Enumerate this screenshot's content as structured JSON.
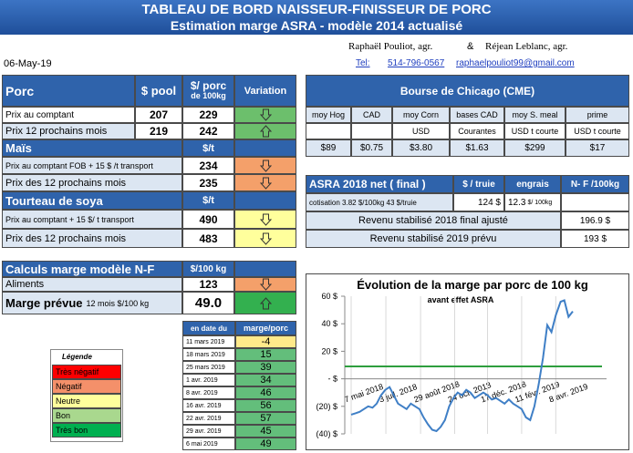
{
  "header": {
    "title": "TABLEAU DE BORD NAISSEUR-FINISSEUR DE PORC",
    "subtitle": "Estimation marge ASRA - modèle 2014 actualisé"
  },
  "contacts": {
    "name1": "Raphaël Pouliot, agr.",
    "and": "&",
    "name2": "Réjean Leblanc, agr.",
    "tel_label": "Tel:",
    "tel": "514-796-0567",
    "email": "raphaelpouliot99@gmail.com"
  },
  "date": "06-May-19",
  "porc": {
    "headers": [
      "Porc",
      "$ pool",
      "$/ porc",
      "de 100kg",
      "Variation"
    ],
    "rows": [
      [
        "Prix au comptant",
        "207",
        "229"
      ],
      [
        "Prix 12 prochains mois",
        "219",
        "242"
      ]
    ]
  },
  "mais": {
    "headers": [
      "Maïs",
      "$/t"
    ],
    "rows": [
      [
        "Prix au comptant FOB + 15 $ /t transport",
        "234"
      ],
      [
        "Prix des 12 prochains mois",
        "235"
      ]
    ]
  },
  "soya": {
    "headers": [
      "Tourteau de soya",
      "$/t"
    ],
    "rows": [
      [
        "Prix au comptant + 15 $/ t transport",
        "490"
      ],
      [
        "Prix des 12 prochains mois",
        "483"
      ]
    ]
  },
  "calc": {
    "headers": [
      "Calculs marge  modèle N-F",
      "$/100 kg"
    ],
    "aliments": [
      "Aliments",
      "123"
    ],
    "marge": {
      "label": "Marge prévue",
      "sub": "12 mois  $/100 kg",
      "value": "49.0"
    }
  },
  "history": {
    "headers": [
      "en date du",
      "marge/porc"
    ],
    "rows": [
      [
        "11 mars 2019",
        "-4"
      ],
      [
        "18 mars 2019",
        "15"
      ],
      [
        "25 mars 2019",
        "39"
      ],
      [
        "1 avr. 2019",
        "34"
      ],
      [
        "8 avr. 2019",
        "46"
      ],
      [
        "16 avr. 2019",
        "56"
      ],
      [
        "22 avr. 2019",
        "57"
      ],
      [
        "29 avr. 2019",
        "45"
      ],
      [
        "6 mai 2019",
        "49"
      ]
    ]
  },
  "legend": {
    "title": "Légende",
    "items": [
      "Très négatif",
      "Négatif",
      "Neutre",
      "Bon",
      "Très bon"
    ]
  },
  "cme": {
    "title": "Bourse de Chicago (CME)",
    "headers": [
      "moy Hog",
      "CAD",
      "moy Corn",
      "bases CAD",
      "moy S. meal",
      "prime"
    ],
    "units": [
      null,
      null,
      "USD",
      "Courantes",
      "USD t courte",
      "USD t courte"
    ],
    "values": [
      "$89",
      "$0.75",
      "$3.80",
      "$1.63",
      "$299",
      "$17"
    ]
  },
  "asra": {
    "headers": [
      "ASRA 2018 net ( final )",
      "$ / truie",
      "engrais",
      "N- F /100kg"
    ],
    "cotisation": "cotisation 3.82 $/100kg  43 $/truie",
    "truie": "124 $",
    "engrais": "12.3",
    "engrais_unit": "$/ 100kg",
    "rows": [
      [
        "Revenu stabilisé 2018  final ajusté",
        "196.9 $"
      ],
      [
        "Revenu stabilisé 2019 prévu",
        "193 $"
      ]
    ]
  },
  "chart_data": {
    "type": "line",
    "title": "Évolution de la marge par porc de 100 kg",
    "subtitle": "avant effet ASRA",
    "x": [
      "2018-05-07",
      "2018-05-14",
      "2018-05-21",
      "2018-05-28",
      "2018-06-04",
      "2018-06-11",
      "2018-06-18",
      "2018-06-25",
      "2018-07-02",
      "2018-07-09",
      "2018-07-16",
      "2018-07-23",
      "2018-07-30",
      "2018-08-06",
      "2018-08-13",
      "2018-08-20",
      "2018-08-27",
      "2018-09-03",
      "2018-09-10",
      "2018-09-17",
      "2018-09-24",
      "2018-10-01",
      "2018-10-08",
      "2018-10-15",
      "2018-10-22",
      "2018-10-29",
      "2018-11-05",
      "2018-11-12",
      "2018-11-19",
      "2018-11-26",
      "2018-12-03",
      "2018-12-10",
      "2018-12-17",
      "2018-12-24",
      "2018-12-31",
      "2019-01-07",
      "2019-01-14",
      "2019-01-21",
      "2019-01-28",
      "2019-02-04",
      "2019-02-11",
      "2019-02-18",
      "2019-02-25",
      "2019-03-04",
      "2019-03-11",
      "2019-03-18",
      "2019-03-25",
      "2019-04-01",
      "2019-04-08",
      "2019-04-16",
      "2019-04-22",
      "2019-04-29",
      "2019-05-06"
    ],
    "values": [
      -26,
      -25,
      -24,
      -22,
      -20,
      -21,
      -18,
      -12,
      -8,
      -6,
      -12,
      -18,
      -20,
      -22,
      -18,
      -20,
      -22,
      -28,
      -33,
      -37,
      -38,
      -35,
      -30,
      -20,
      -14,
      -10,
      -12,
      -8,
      -10,
      -14,
      -12,
      -10,
      -12,
      -15,
      -14,
      -16,
      -18,
      -15,
      -18,
      -20,
      -22,
      -28,
      -30,
      -20,
      -4,
      15,
      39,
      34,
      46,
      56,
      57,
      45,
      49
    ],
    "color": "#3f7fc6",
    "reference_line": {
      "value": 9,
      "color": "#2e9e3e"
    },
    "xlim": [
      "2018-05-07",
      "2019-05-06"
    ],
    "xticks": [
      {
        "value": "2018-05-07",
        "label": "7 mai 2018"
      },
      {
        "value": "2018-07-03",
        "label": "3 juil. 2018"
      },
      {
        "value": "2018-08-29",
        "label": "29 août 2018"
      },
      {
        "value": "2018-10-24",
        "label": "24 oct. 2018"
      },
      {
        "value": "2018-12-17",
        "label": "17 déc. 2018"
      },
      {
        "value": "2019-02-11",
        "label": "11 févr. 2019"
      },
      {
        "value": "2019-04-08",
        "label": "8 avr. 2019"
      }
    ],
    "ylim": [
      -40,
      60
    ],
    "yticks": [
      {
        "value": 60,
        "label": "60 $"
      },
      {
        "value": 40,
        "label": "40 $"
      },
      {
        "value": 20,
        "label": "20 $"
      },
      {
        "value": 0,
        "label": "-   $"
      },
      {
        "value": -20,
        "label": "(20) $"
      },
      {
        "value": -40,
        "label": "(40) $"
      }
    ],
    "grid": true
  }
}
